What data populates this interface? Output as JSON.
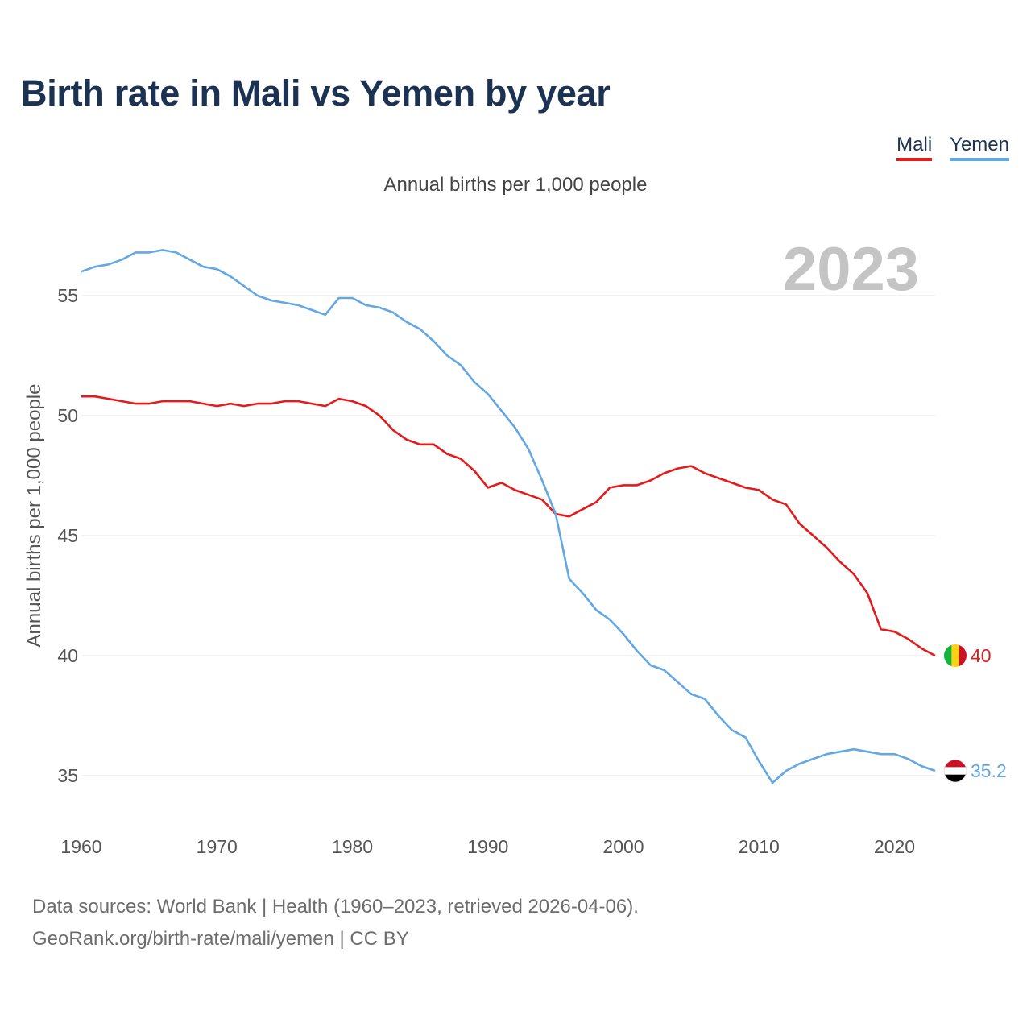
{
  "title": "Birth rate in Mali vs Yemen by year",
  "subtitle": "Annual births per 1,000 people",
  "legend": [
    {
      "name": "Mali",
      "color": "#e41a1c"
    },
    {
      "name": "Yemen",
      "color": "#63a7e5"
    }
  ],
  "source": {
    "line1": "Data sources: World Bank | Health (1960–2023, retrieved 2026-04-06).",
    "line2": "GeoRank.org/birth-rate/mali/yemen | CC BY"
  },
  "chart_data": {
    "type": "line",
    "title": "Birth rate in Mali vs Yemen by year",
    "ylabel": "Annual births per 1,000 people",
    "xlabel": "",
    "year_label": "2023",
    "xlim": [
      1960,
      2023
    ],
    "ylim": [
      33.5,
      58
    ],
    "xticks": [
      1960,
      1970,
      1980,
      1990,
      2000,
      2010,
      2020
    ],
    "yticks": [
      35,
      40,
      45,
      50,
      55
    ],
    "grid": true,
    "x": [
      1960,
      1961,
      1962,
      1963,
      1964,
      1965,
      1966,
      1967,
      1968,
      1969,
      1970,
      1971,
      1972,
      1973,
      1974,
      1975,
      1976,
      1977,
      1978,
      1979,
      1980,
      1981,
      1982,
      1983,
      1984,
      1985,
      1986,
      1987,
      1988,
      1989,
      1990,
      1991,
      1992,
      1993,
      1994,
      1995,
      1996,
      1997,
      1998,
      1999,
      2000,
      2001,
      2002,
      2003,
      2004,
      2005,
      2006,
      2007,
      2008,
      2009,
      2010,
      2011,
      2012,
      2013,
      2014,
      2015,
      2016,
      2017,
      2018,
      2019,
      2020,
      2021,
      2022,
      2023
    ],
    "series": [
      {
        "name": "Mali",
        "color": "#e41a1c",
        "end_label": "40",
        "values": [
          50.8,
          50.8,
          50.7,
          50.6,
          50.5,
          50.5,
          50.6,
          50.6,
          50.6,
          50.5,
          50.4,
          50.5,
          50.4,
          50.5,
          50.5,
          50.6,
          50.6,
          50.5,
          50.4,
          50.7,
          50.6,
          50.4,
          50.0,
          49.4,
          49.0,
          48.8,
          48.8,
          48.4,
          48.2,
          47.7,
          47.0,
          47.2,
          46.9,
          46.7,
          46.5,
          45.9,
          45.8,
          46.1,
          46.4,
          47.0,
          47.1,
          47.1,
          47.3,
          47.6,
          47.8,
          47.9,
          47.6,
          47.4,
          47.2,
          47.0,
          46.9,
          46.5,
          46.3,
          45.5,
          45.0,
          44.5,
          43.9,
          43.4,
          42.6,
          41.1,
          41.0,
          40.7,
          40.3,
          40.0
        ]
      },
      {
        "name": "Yemen",
        "color": "#63a7e5",
        "end_label": "35.2",
        "values": [
          56.0,
          56.2,
          56.3,
          56.5,
          56.8,
          56.8,
          56.9,
          56.8,
          56.5,
          56.2,
          56.1,
          55.8,
          55.4,
          55.0,
          54.8,
          54.7,
          54.6,
          54.4,
          54.2,
          54.9,
          54.9,
          54.6,
          54.5,
          54.3,
          53.9,
          53.6,
          53.1,
          52.5,
          52.1,
          51.4,
          50.9,
          50.2,
          49.5,
          48.6,
          47.3,
          45.9,
          43.2,
          42.6,
          41.9,
          41.5,
          40.9,
          40.2,
          39.6,
          39.4,
          38.9,
          38.4,
          38.2,
          37.5,
          36.9,
          36.6,
          35.6,
          34.7,
          35.2,
          35.5,
          35.7,
          35.9,
          36.0,
          36.1,
          36.0,
          35.9,
          35.9,
          35.7,
          35.4,
          35.2
        ]
      }
    ]
  }
}
